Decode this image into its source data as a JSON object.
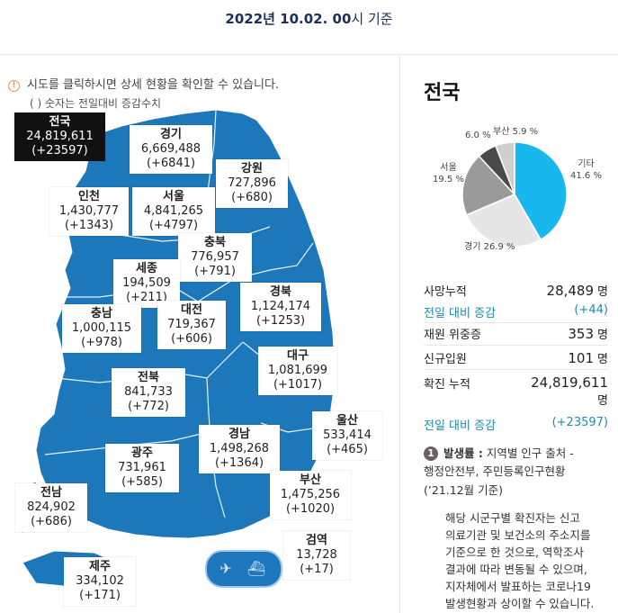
{
  "header": {
    "date": "2022년 10.02. 00",
    "suffix": "시 기준"
  },
  "notice": {
    "line1": "시도를 클릭하시면 상세 현황을 확인할 수 있습니다.",
    "line2": "( ) 숫자는 전일대비 증감수치"
  },
  "map": {
    "national": {
      "name": "전국",
      "value": "24,819,611",
      "delta": "(+23597)"
    },
    "regions": [
      {
        "id": "gyeonggi",
        "name": "경기",
        "value": "6,669,488",
        "delta": "(+6841)"
      },
      {
        "id": "gangwon",
        "name": "강원",
        "value": "727,896",
        "delta": "(+680)"
      },
      {
        "id": "incheon",
        "name": "인천",
        "value": "1,430,777",
        "delta": "(+1343)"
      },
      {
        "id": "seoul",
        "name": "서울",
        "value": "4,841,265",
        "delta": "(+4797)"
      },
      {
        "id": "chungbuk",
        "name": "충북",
        "value": "776,957",
        "delta": "(+791)"
      },
      {
        "id": "sejong",
        "name": "세종",
        "value": "194,509",
        "delta": "(+211)"
      },
      {
        "id": "gyeongbuk",
        "name": "경북",
        "value": "1,124,174",
        "delta": "(+1253)"
      },
      {
        "id": "chungnam",
        "name": "충남",
        "value": "1,000,115",
        "delta": "(+978)"
      },
      {
        "id": "daejeon",
        "name": "대전",
        "value": "719,367",
        "delta": "(+606)"
      },
      {
        "id": "daegu",
        "name": "대구",
        "value": "1,081,699",
        "delta": "(+1017)"
      },
      {
        "id": "jeonbuk",
        "name": "전북",
        "value": "841,733",
        "delta": "(+772)"
      },
      {
        "id": "ulsan",
        "name": "울산",
        "value": "533,414",
        "delta": "(+465)"
      },
      {
        "id": "gwangju",
        "name": "광주",
        "value": "731,961",
        "delta": "(+585)"
      },
      {
        "id": "gyeongnam",
        "name": "경남",
        "value": "1,498,268",
        "delta": "(+1364)"
      },
      {
        "id": "jeonnam",
        "name": "전남",
        "value": "824,902",
        "delta": "(+686)"
      },
      {
        "id": "busan",
        "name": "부산",
        "value": "1,475,256",
        "delta": "(+1020)"
      },
      {
        "id": "quarantine",
        "name": "검역",
        "value": "13,728",
        "delta": "(+17)"
      },
      {
        "id": "jeju",
        "name": "제주",
        "value": "334,102",
        "delta": "(+171)"
      }
    ],
    "icons": [
      "airplane-icon",
      "ship-icon"
    ]
  },
  "panel": {
    "title": "전국",
    "chart_data": {
      "type": "pie",
      "title": "",
      "slices": [
        {
          "name": "기타",
          "value": 41.6,
          "label": "41.6 %",
          "color": "#18b8ee"
        },
        {
          "name": "경기",
          "value": 26.9,
          "label": "26.9 %",
          "color": "#e6e6e6"
        },
        {
          "name": "서울",
          "value": 19.5,
          "label": "19.5 %",
          "color": "#9a9a9a"
        },
        {
          "name": "",
          "value": 6.0,
          "label": "6.0 %",
          "color": "#4a4a4a"
        },
        {
          "name": "부산",
          "value": 5.9,
          "label": "5.9 %",
          "color": "#cfcfcf"
        }
      ]
    },
    "stats": {
      "deaths": {
        "label": "사망누적",
        "value": "28,489",
        "unit": "명"
      },
      "deaths_delta": {
        "label": "전일 대비 증감",
        "value": "(+44)"
      },
      "critical": {
        "label": "재원 위중증",
        "value": "353",
        "unit": "명"
      },
      "admitted": {
        "label": "신규입원",
        "value": "101",
        "unit": "명"
      },
      "confirmed": {
        "label": "확진 누적",
        "value": "24,819,611",
        "unit": "명"
      },
      "confirmed_delta": {
        "label": "전일 대비 증감",
        "value": "(+23597)"
      }
    },
    "footnote": {
      "badge": "1",
      "title": "발생률 :",
      "line1": " 지역별 인구 출처 -",
      "line2": "행정안전부, 주민등록인구현황",
      "line3": "(’21.12월 기준)",
      "para": [
        "해당 시군구별 확진자는 신고",
        "의료기관 및 보건소의 주소지를",
        "기준으로 한 것으로, 역학조사",
        "결과에 따라 변동될 수 있으며,",
        "지자체에서 발표하는 코로나19",
        "발생현황과 상이할 수 있습니다."
      ]
    },
    "colors": {
      "accent": "#1e8bb0",
      "map": "#1d77bb",
      "pie_primary": "#18b8ee"
    }
  }
}
